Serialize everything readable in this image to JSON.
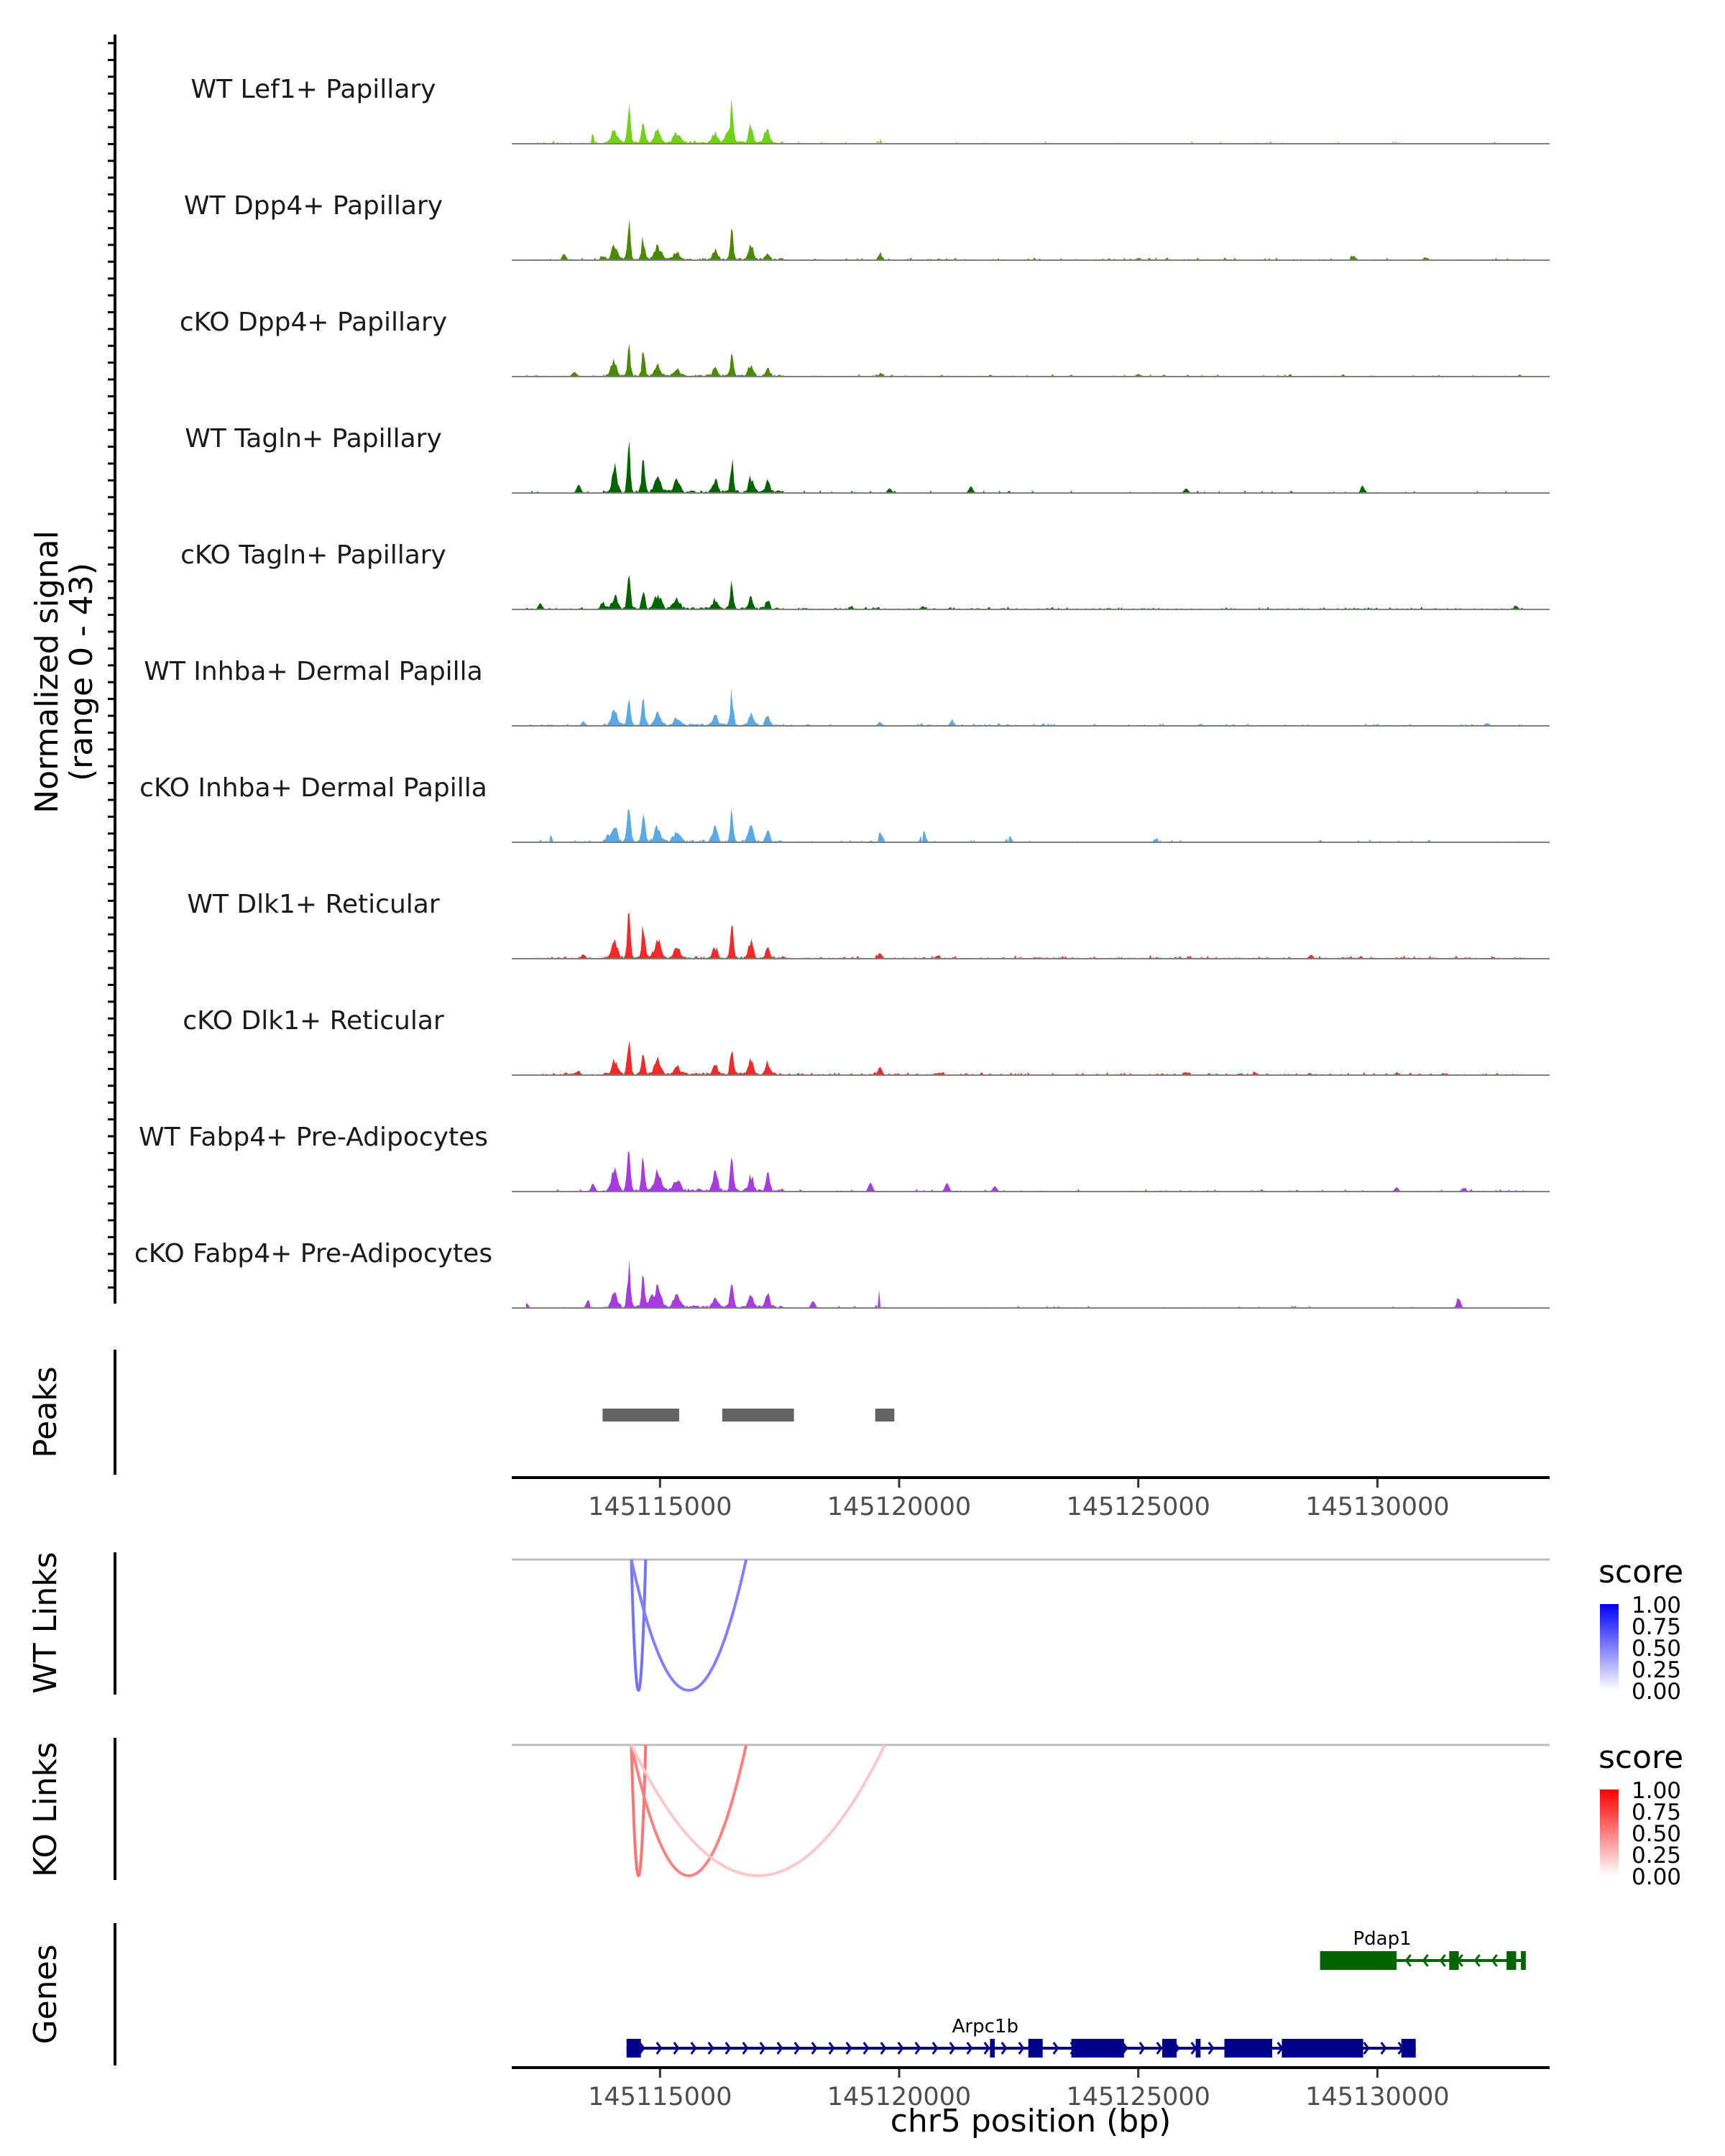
{
  "chart_data": {
    "type": "area",
    "title": "",
    "coverage": {
      "ylabel_line1": "Normalized signal",
      "ylabel_line2": "(range 0 - 43)",
      "yrange": [
        0,
        43
      ],
      "xlim": [
        145111900,
        145133600
      ],
      "tracks": [
        {
          "name": "WT Lef1+ Papillary",
          "color": "#72d11a",
          "seed": 11,
          "scale": 0.85,
          "extras": [
            [
              145112800,
              0.12
            ],
            [
              145113600,
              0.15
            ],
            [
              145116400,
              0.22
            ],
            [
              145117200,
              0.22
            ],
            [
              145119600,
              0.12
            ],
            [
              145130400,
              0.04
            ]
          ],
          "floor": 0.015,
          "tail": 0.5
        },
        {
          "name": "WT Dpp4+ Papillary",
          "color": "#4a8a00",
          "seed": 23,
          "scale": 0.7,
          "extras": [
            [
              145113000,
              0.1
            ],
            [
              145113800,
              0.12
            ],
            [
              145119600,
              0.15
            ],
            [
              145125000,
              0.08
            ],
            [
              145129500,
              0.08
            ],
            [
              145131000,
              0.08
            ]
          ],
          "floor": 0.03,
          "tail": 1.0
        },
        {
          "name": "cKO Dpp4+ Papillary",
          "color": "#4a8a00",
          "seed": 37,
          "scale": 0.65,
          "extras": [
            [
              145113200,
              0.1
            ],
            [
              145114000,
              0.12
            ],
            [
              145119600,
              0.1
            ],
            [
              145125000,
              0.06
            ]
          ],
          "floor": 0.03,
          "tail": 1.0
        },
        {
          "name": "WT Tagln+ Papillary",
          "color": "#006400",
          "seed": 41,
          "scale": 0.95,
          "extras": [
            [
              145113300,
              0.12
            ],
            [
              145119800,
              0.1
            ],
            [
              145121500,
              0.1
            ],
            [
              145126000,
              0.08
            ],
            [
              145129700,
              0.08
            ]
          ],
          "floor": 0.0,
          "tail": 1.0
        },
        {
          "name": "cKO Tagln+ Papillary",
          "color": "#006400",
          "seed": 53,
          "scale": 0.75,
          "extras": [
            [
              145112500,
              0.12
            ],
            [
              145113800,
              0.12
            ],
            [
              145119000,
              0.1
            ],
            [
              145120500,
              0.08
            ],
            [
              145132900,
              0.08
            ]
          ],
          "floor": 0.035,
          "tail": 1.0
        },
        {
          "name": "WT Inhba+ Dermal Papilla",
          "color": "#5aa9e6",
          "seed": 67,
          "scale": 0.75,
          "extras": [
            [
              145113400,
              0.1
            ],
            [
              145119600,
              0.12
            ],
            [
              145121100,
              0.1
            ],
            [
              145126300,
              0.06
            ],
            [
              145132300,
              0.06
            ]
          ],
          "floor": 0.02,
          "tail": 1.0
        },
        {
          "name": "cKO Inhba+ Dermal Papilla",
          "color": "#5aa9e6",
          "seed": 71,
          "scale": 0.8,
          "extras": [
            [
              145112700,
              0.15
            ],
            [
              145113900,
              0.18
            ],
            [
              145119600,
              0.25
            ],
            [
              145120500,
              0.2
            ],
            [
              145122300,
              0.15
            ],
            [
              145125400,
              0.12
            ]
          ],
          "floor": 0.02,
          "tail": 0.75
        },
        {
          "name": "WT Dlk1+ Reticular",
          "color": "#f5282a",
          "seed": 83,
          "scale": 0.85,
          "extras": [
            [
              145113400,
              0.1
            ],
            [
              145119600,
              0.12
            ],
            [
              145120800,
              0.06
            ],
            [
              145128600,
              0.06
            ]
          ],
          "floor": 0.035,
          "tail": 1.0
        },
        {
          "name": "cKO Dlk1+ Reticular",
          "color": "#f5282a",
          "seed": 97,
          "scale": 0.8,
          "extras": [
            [
              145113300,
              0.1
            ],
            [
              145119600,
              0.15
            ],
            [
              145120800,
              0.06
            ],
            [
              145126000,
              0.06
            ],
            [
              145130400,
              0.06
            ]
          ],
          "floor": 0.04,
          "tail": 1.0
        },
        {
          "name": "WT Fabp4+ Pre-Adipocytes",
          "color": "#a83be0",
          "seed": 101,
          "scale": 1.0,
          "extras": [
            [
              145113600,
              0.15
            ],
            [
              145119400,
              0.15
            ],
            [
              145121000,
              0.12
            ],
            [
              145122000,
              0.12
            ],
            [
              145130400,
              0.12
            ],
            [
              145131800,
              0.1
            ]
          ],
          "floor": 0.0,
          "tail": 1.0
        },
        {
          "name": "cKO Fabp4+ Pre-Adipocytes",
          "color": "#a83be0",
          "seed": 113,
          "scale": 0.9,
          "extras": [
            [
              145112200,
              0.15
            ],
            [
              145113500,
              0.25
            ],
            [
              145114800,
              0.35
            ],
            [
              145119600,
              0.3
            ],
            [
              145118200,
              0.15
            ],
            [
              145131700,
              0.15
            ]
          ],
          "floor": 0.0,
          "tail": 0.8
        }
      ]
    },
    "peaks": {
      "label": "Peaks",
      "regions": [
        [
          145113800,
          145115400
        ],
        [
          145116300,
          145117800
        ],
        [
          145119500,
          145119900
        ]
      ],
      "color": "#646464"
    },
    "x_axis": {
      "ticks": [
        145115000,
        145120000,
        145125000,
        145130000
      ],
      "tick_labels": [
        "145115000",
        "145120000",
        "145125000",
        "145130000"
      ],
      "xlabel": "chr5 position (bp)"
    },
    "links": [
      {
        "label": "WT Links",
        "legend_title": "score",
        "low_color": "#ffffff",
        "high_color": "#0000ff",
        "legend_ticks": [
          "1.00",
          "0.75",
          "0.50",
          "0.25",
          "0.00"
        ],
        "arcs": [
          [
            145114400,
            145114700,
            0.55
          ],
          [
            145114400,
            145116800,
            0.5
          ]
        ]
      },
      {
        "label": "KO Links",
        "legend_title": "score",
        "low_color": "#ffffff",
        "high_color": "#ff0000",
        "legend_ticks": [
          "1.00",
          "0.75",
          "0.50",
          "0.25",
          "0.00"
        ],
        "arcs": [
          [
            145114400,
            145114700,
            0.55
          ],
          [
            145114400,
            145116800,
            0.5
          ],
          [
            145114400,
            145119700,
            0.22
          ]
        ]
      }
    ],
    "genes": {
      "label": "Genes",
      "items": [
        {
          "name": "Pdap1",
          "strand": "-",
          "color": "#006400",
          "start": 145128800,
          "end": 145133100,
          "exons": [
            [
              145128800,
              145130400,
              "thick"
            ],
            [
              145131500,
              145131700,
              "thin"
            ],
            [
              145132700,
              145132900,
              "thin"
            ],
            [
              145133000,
              145133100,
              "thin"
            ]
          ]
        },
        {
          "name": "Arpc1b",
          "strand": "+",
          "color": "#00008b",
          "start": 145114300,
          "end": 145130800,
          "exons": [
            [
              145114300,
              145114600,
              "thin"
            ],
            [
              145121900,
              145122000,
              "thin"
            ],
            [
              145122700,
              145123000,
              "thin"
            ],
            [
              145123600,
              145124700,
              "thick"
            ],
            [
              145125500,
              145125800,
              "thin"
            ],
            [
              145126200,
              145126300,
              "thin"
            ],
            [
              145126800,
              145127800,
              "thick"
            ],
            [
              145128000,
              145129700,
              "thick"
            ],
            [
              145130500,
              145130800,
              "thin"
            ]
          ]
        }
      ]
    }
  }
}
